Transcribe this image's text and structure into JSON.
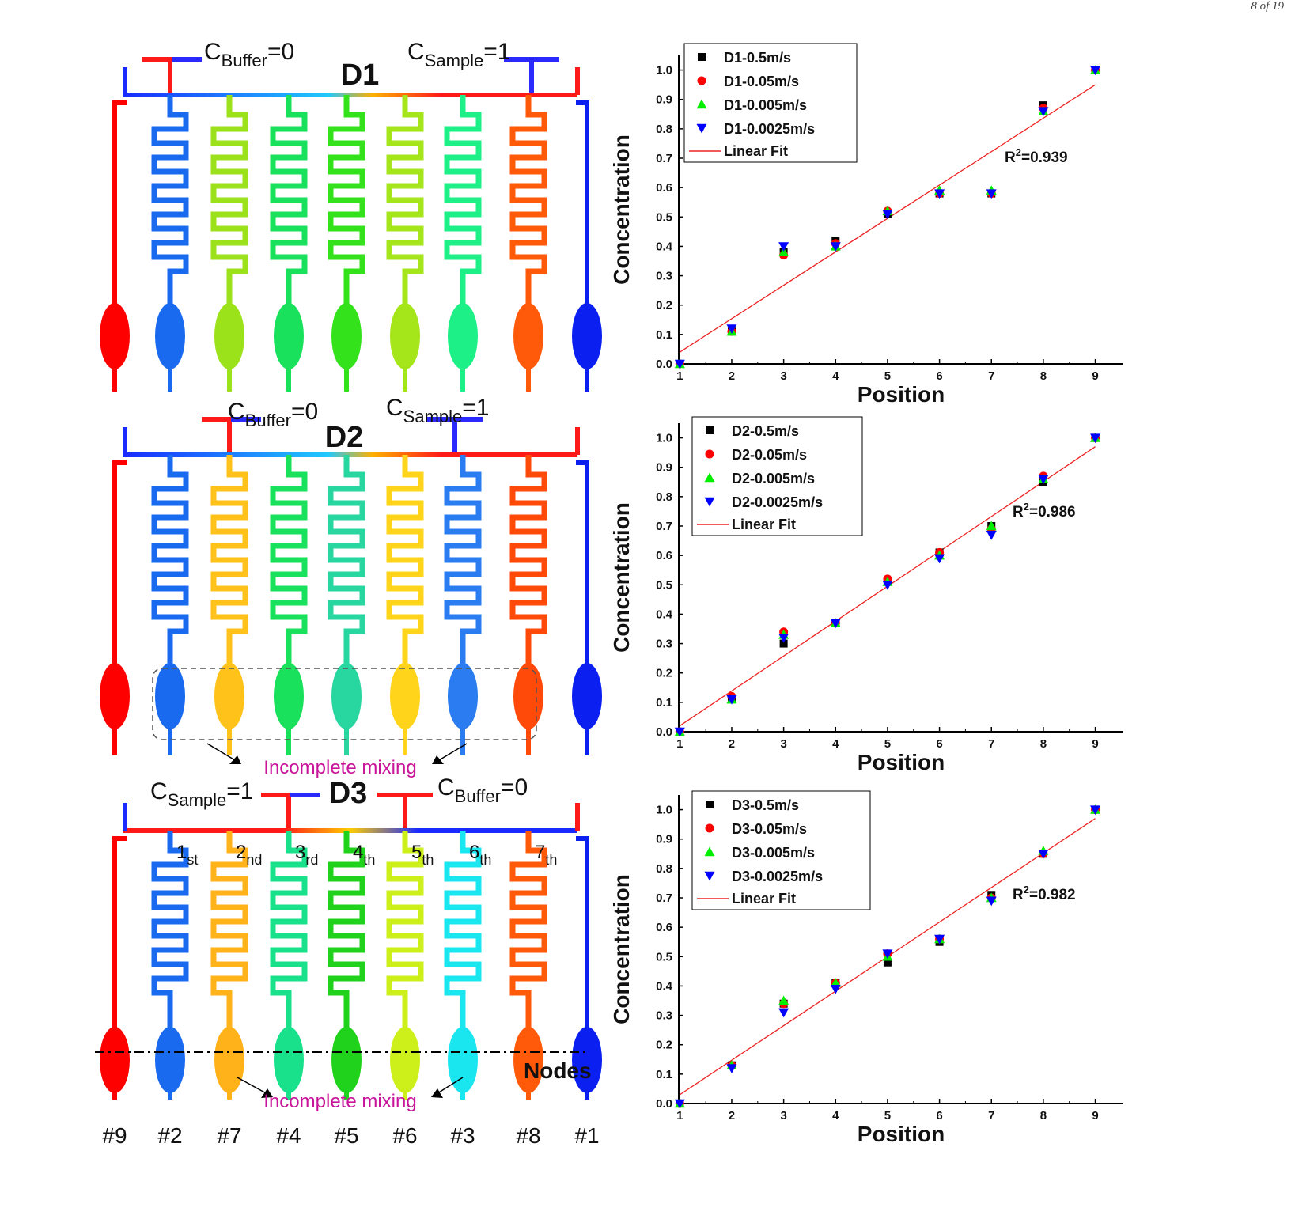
{
  "corner_text": "8 of 19",
  "chips": [
    {
      "title": "D1",
      "left_label": {
        "c": "C",
        "sub": "Buffer",
        "val": "=0"
      },
      "right_label": {
        "c": "C",
        "sub": "Sample",
        "val": "=1"
      },
      "branch_colors": [
        "#ff0000",
        "#1a6af0",
        "#9be21a",
        "#19e15b",
        "#33e21b",
        "#a5e61b",
        "#1cf087",
        "#ff5a0a",
        "#0a1ff0"
      ]
    },
    {
      "title": "D2",
      "left_label": {
        "c": "C",
        "sub": "Buffer",
        "val": "=0"
      },
      "right_label": {
        "c": "C",
        "sub": "Sample",
        "val": "=1"
      },
      "branch_colors": [
        "#ff0000",
        "#1a6af0",
        "#ffc21a",
        "#19e15b",
        "#28d6a0",
        "#ffd41a",
        "#2a7cf0",
        "#ff4a0a",
        "#0a1ff0"
      ],
      "annotation": "Incomplete mixing"
    },
    {
      "title": "D3",
      "left_label": {
        "c": "C",
        "sub": "Sample",
        "val": "=1"
      },
      "right_label": {
        "c": "C",
        "sub": "Buffer",
        "val": "=0"
      },
      "branch_colors": [
        "#ff0000",
        "#1a6af0",
        "#ffb21a",
        "#19e18b",
        "#20d21b",
        "#cdf01b",
        "#1ae6f0",
        "#ff5a0a",
        "#0a1ff0"
      ],
      "annotation": "Incomplete mixing",
      "ordinals": [
        {
          "n": "1",
          "s": "st"
        },
        {
          "n": "2",
          "s": "nd"
        },
        {
          "n": "3",
          "s": "rd"
        },
        {
          "n": "4",
          "s": "th"
        },
        {
          "n": "5",
          "s": "th"
        },
        {
          "n": "6",
          "s": "th"
        },
        {
          "n": "7",
          "s": "th"
        }
      ],
      "nodes_label": "Nodes"
    }
  ],
  "outlet_numbers": [
    "#9",
    "#2",
    "#7",
    "#4",
    "#5",
    "#6",
    "#3",
    "#8",
    "#1"
  ],
  "styles": {
    "linear_fit_color": "#ee2222",
    "series_colors": [
      "#000000",
      "#ff0000",
      "#00ee00",
      "#0000ff"
    ]
  },
  "chart_data": [
    {
      "type": "scatter",
      "xlabel": "Position",
      "ylabel": "Concentration",
      "xlim": [
        1,
        9.5
      ],
      "ylim": [
        0,
        1.05
      ],
      "xticks": [
        "1",
        "2",
        "3",
        "4",
        "5",
        "6",
        "7",
        "8",
        "9"
      ],
      "yticks": [
        "0.0",
        "0.1",
        "0.2",
        "0.3",
        "0.4",
        "0.5",
        "0.6",
        "0.7",
        "0.8",
        "0.9",
        "1.0"
      ],
      "x": [
        1,
        2,
        3,
        4,
        5,
        6,
        7,
        8,
        9
      ],
      "series": [
        {
          "name": "D1-0.5m/s",
          "marker": "square",
          "values": [
            0.0,
            0.11,
            0.38,
            0.42,
            0.51,
            0.58,
            0.58,
            0.88,
            1.0
          ]
        },
        {
          "name": "D1-0.05m/s",
          "marker": "circle",
          "values": [
            0.0,
            0.11,
            0.37,
            0.41,
            0.52,
            0.58,
            0.58,
            0.87,
            1.0
          ]
        },
        {
          "name": "D1-0.005m/s",
          "marker": "triangle-up",
          "values": [
            0.0,
            0.11,
            0.38,
            0.4,
            0.52,
            0.59,
            0.59,
            0.86,
            1.0
          ]
        },
        {
          "name": "D1-0.0025m/s",
          "marker": "triangle-down",
          "values": [
            0.0,
            0.12,
            0.4,
            0.4,
            0.51,
            0.58,
            0.58,
            0.86,
            1.0
          ]
        }
      ],
      "fit": {
        "name": "Linear Fit",
        "y_at_1": 0.04,
        "y_at_9": 0.95
      },
      "r2": {
        "r": "R",
        "sup": "2",
        "val": "=0.939"
      }
    },
    {
      "type": "scatter",
      "xlabel": "Position",
      "ylabel": "Concentration",
      "xlim": [
        1,
        9.5
      ],
      "ylim": [
        0,
        1.05
      ],
      "xticks": [
        "1",
        "2",
        "3",
        "4",
        "5",
        "6",
        "7",
        "8",
        "9"
      ],
      "yticks": [
        "0.0",
        "0.1",
        "0.2",
        "0.3",
        "0.4",
        "0.5",
        "0.6",
        "0.7",
        "0.8",
        "0.9",
        "1.0"
      ],
      "x": [
        1,
        2,
        3,
        4,
        5,
        6,
        7,
        8,
        9
      ],
      "series": [
        {
          "name": "D2-0.5m/s",
          "marker": "square",
          "values": [
            0.0,
            0.11,
            0.3,
            0.37,
            0.51,
            0.61,
            0.7,
            0.85,
            1.0
          ]
        },
        {
          "name": "D2-0.05m/s",
          "marker": "circle",
          "values": [
            0.0,
            0.12,
            0.34,
            0.37,
            0.52,
            0.61,
            0.69,
            0.87,
            1.0
          ]
        },
        {
          "name": "D2-0.005m/s",
          "marker": "triangle-up",
          "values": [
            0.0,
            0.11,
            0.33,
            0.37,
            0.51,
            0.6,
            0.7,
            0.86,
            1.0
          ]
        },
        {
          "name": "D2-0.0025m/s",
          "marker": "triangle-down",
          "values": [
            0.0,
            0.11,
            0.32,
            0.37,
            0.5,
            0.59,
            0.67,
            0.86,
            1.0
          ]
        }
      ],
      "fit": {
        "name": "Linear Fit",
        "y_at_1": 0.02,
        "y_at_9": 0.97
      },
      "r2": {
        "r": "R",
        "sup": "2",
        "val": "=0.986"
      }
    },
    {
      "type": "scatter",
      "xlabel": "Position",
      "ylabel": "Concentration",
      "xlim": [
        1,
        9.5
      ],
      "ylim": [
        0,
        1.05
      ],
      "xticks": [
        "1",
        "2",
        "3",
        "4",
        "5",
        "6",
        "7",
        "8",
        "9"
      ],
      "yticks": [
        "0.0",
        "0.1",
        "0.2",
        "0.3",
        "0.4",
        "0.5",
        "0.6",
        "0.7",
        "0.8",
        "0.9",
        "1.0"
      ],
      "x": [
        1,
        2,
        3,
        4,
        5,
        6,
        7,
        8,
        9
      ],
      "series": [
        {
          "name": "D3-0.5m/s",
          "marker": "square",
          "values": [
            0.0,
            0.13,
            0.34,
            0.41,
            0.48,
            0.55,
            0.71,
            0.85,
            1.0
          ]
        },
        {
          "name": "D3-0.05m/s",
          "marker": "circle",
          "values": [
            0.0,
            0.13,
            0.34,
            0.41,
            0.51,
            0.56,
            0.7,
            0.85,
            1.0
          ]
        },
        {
          "name": "D3-0.005m/s",
          "marker": "triangle-up",
          "values": [
            0.0,
            0.13,
            0.35,
            0.41,
            0.5,
            0.56,
            0.7,
            0.86,
            1.0
          ]
        },
        {
          "name": "D3-0.0025m/s",
          "marker": "triangle-down",
          "values": [
            0.0,
            0.12,
            0.31,
            0.39,
            0.51,
            0.56,
            0.69,
            0.85,
            1.0
          ]
        }
      ],
      "fit": {
        "name": "Linear Fit",
        "y_at_1": 0.03,
        "y_at_9": 0.97
      },
      "r2": {
        "r": "R",
        "sup": "2",
        "val": "=0.982"
      }
    }
  ]
}
